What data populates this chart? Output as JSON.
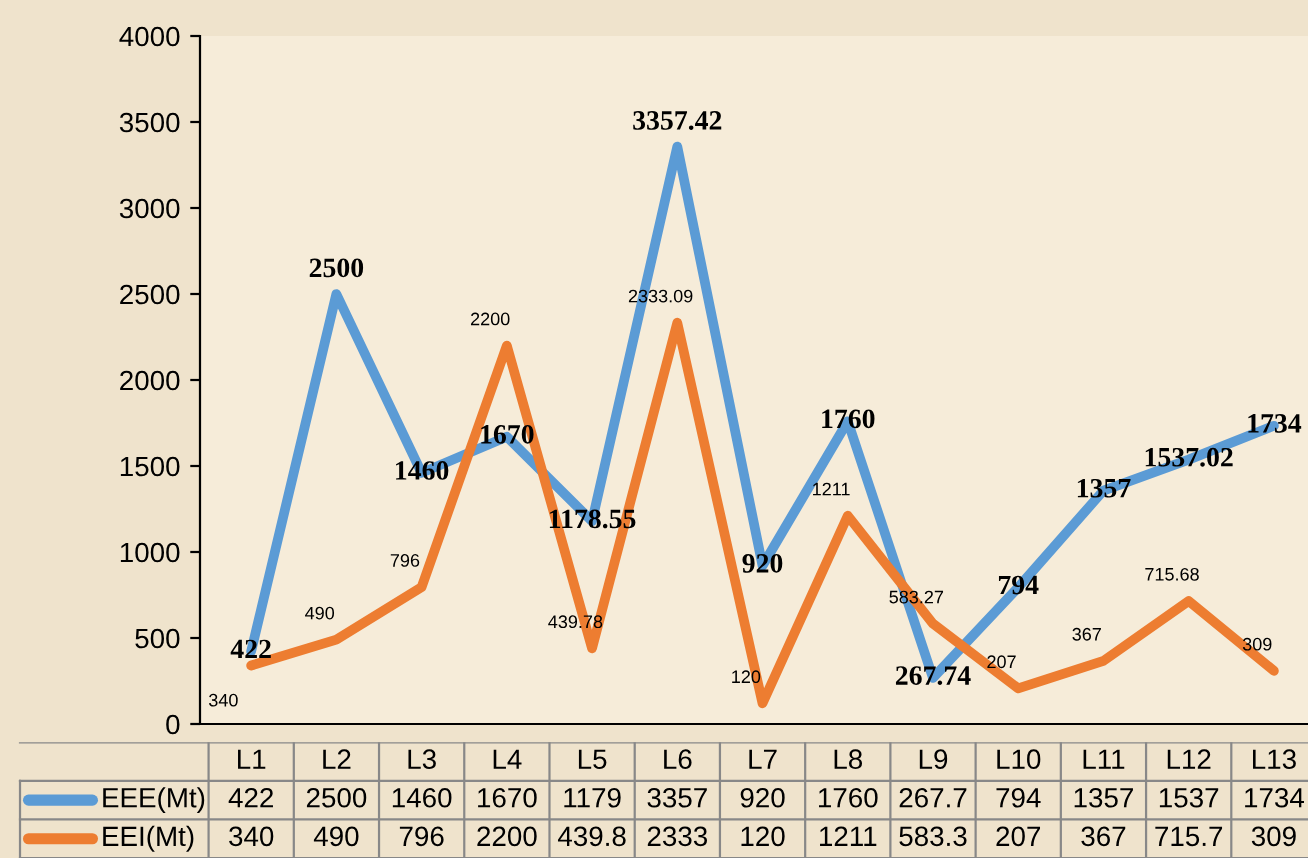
{
  "chart_data": {
    "type": "line",
    "categories": [
      "L1",
      "L2",
      "L3",
      "L4",
      "L5",
      "L6",
      "L7",
      "L8",
      "L9",
      "L10",
      "L11",
      "L12",
      "L13"
    ],
    "series": [
      {
        "name": "EEE(Mt)",
        "color": "#5b9bd5",
        "values": [
          422,
          2500,
          1460,
          1670,
          1178.55,
          3357.42,
          920,
          1760,
          267.74,
          794,
          1357,
          1537.02,
          1734
        ],
        "value_labels": [
          "422",
          "2500",
          "1460",
          "1670",
          "1178.55",
          "3357.42",
          "920",
          "1760",
          "267.74",
          "794",
          "1357",
          "1537.02",
          "1734"
        ]
      },
      {
        "name": "EEI(Mt)",
        "color": "#ed7d31",
        "values": [
          340,
          490,
          796,
          2200,
          439.78,
          2333.09,
          120,
          1211,
          583.27,
          207,
          367,
          715.68,
          309
        ],
        "value_labels": [
          "340",
          "490",
          "796",
          "2200",
          "439.78",
          "2333.09",
          "120",
          "1211",
          "583.27",
          "207",
          "367",
          "715.68",
          "309"
        ]
      }
    ],
    "ylim": [
      0,
      4000
    ],
    "yticks": [
      0,
      500,
      1000,
      1500,
      2000,
      2500,
      3000,
      3500,
      4000
    ],
    "grid": false,
    "legend": "bottom",
    "line_style": "solid",
    "annotations": [
      "422",
      "2500",
      "1460",
      "1670",
      "1179",
      "3357",
      "920",
      "1760",
      "267.7",
      "794",
      "1357",
      "1537",
      "1734",
      "340",
      "490",
      "796",
      "2200",
      "439.8",
      "2333",
      "120",
      "1211",
      "583.3",
      "207",
      "367",
      "715.7",
      "309"
    ]
  }
}
